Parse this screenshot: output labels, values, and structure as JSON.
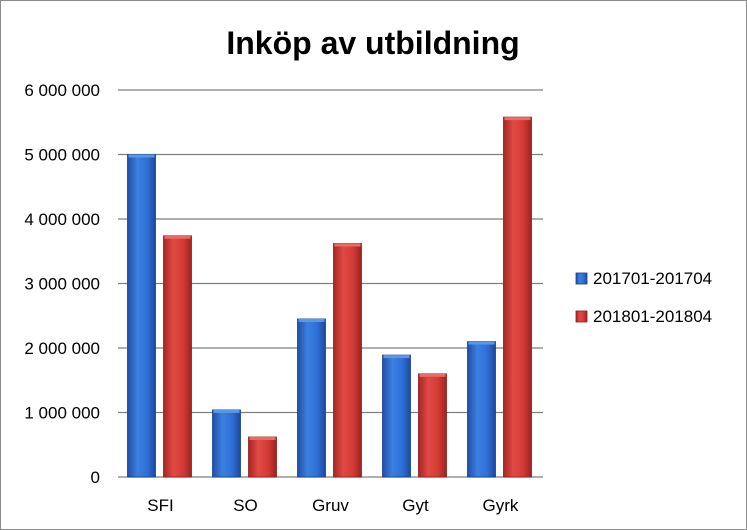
{
  "chart_data": {
    "type": "bar",
    "title": "Inköp av utbildning",
    "categories": [
      "SFI",
      "SO",
      "Gruv",
      "Gyt",
      "Gyrk"
    ],
    "series": [
      {
        "name": "201701-201704",
        "values": [
          5000000,
          1040000,
          2450000,
          1890000,
          2100000
        ],
        "color": "#2f6fd6"
      },
      {
        "name": "201801-201804",
        "values": [
          3740000,
          620000,
          3620000,
          1600000,
          5580000
        ],
        "color": "#d43a35"
      }
    ],
    "ylim": [
      0,
      6000000
    ],
    "yticks": [
      0,
      1000000,
      2000000,
      3000000,
      4000000,
      5000000,
      6000000
    ],
    "ytick_labels": [
      "0",
      "1 000 000",
      "2 000 000",
      "3 000 000",
      "4 000 000",
      "5 000 000",
      "6 000 000"
    ],
    "grid": true,
    "legend_position": "right",
    "xlabel": "",
    "ylabel": ""
  }
}
